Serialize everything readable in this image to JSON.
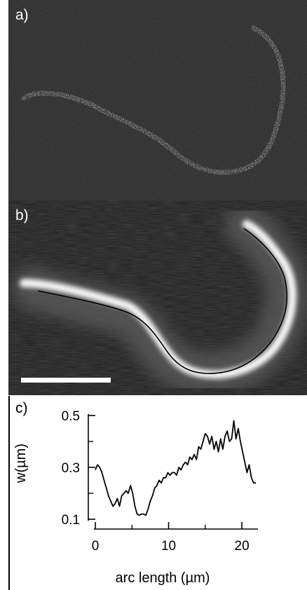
{
  "panels": {
    "a": {
      "label": "a)"
    },
    "b": {
      "label": "b)"
    },
    "c": {
      "label": "c)"
    }
  },
  "colors": {
    "micrograph_bg": "#161616",
    "signal": "#ffffff",
    "contour": "#000000",
    "plot_line": "#000000"
  },
  "chart_data": {
    "type": "line",
    "title": "",
    "xlabel": "arc length (µm)",
    "ylabel": "w(µm)",
    "xlim": [
      0,
      22
    ],
    "ylim": [
      0.1,
      0.5
    ],
    "xticks": [
      0,
      10,
      20
    ],
    "xtick_labels": [
      "0",
      "10",
      "20"
    ],
    "yticks": [
      0.1,
      0.3,
      0.5
    ],
    "ytick_labels": [
      "0.1",
      "0.3",
      "0.5"
    ],
    "y_minor_ticks": [
      0.2,
      0.4
    ],
    "grid": false,
    "series": [
      {
        "x": [
          0,
          0.3,
          0.6,
          0.9,
          1.2,
          1.5,
          1.8,
          2.1,
          2.4,
          2.7,
          3.0,
          3.3,
          3.6,
          3.9,
          4.2,
          4.5,
          4.8,
          5.1,
          5.4,
          5.7,
          6.0,
          6.3,
          6.6,
          6.9,
          7.2,
          7.5,
          7.8,
          8.1,
          8.4,
          8.7,
          9.0,
          9.3,
          9.6,
          9.9,
          10.2,
          10.5,
          10.8,
          11.1,
          11.4,
          11.7,
          12.0,
          12.3,
          12.6,
          12.9,
          13.2,
          13.5,
          13.8,
          14.1,
          14.4,
          14.7,
          15.0,
          15.3,
          15.6,
          15.9,
          16.2,
          16.5,
          16.8,
          17.1,
          17.4,
          17.7,
          18.0,
          18.3,
          18.6,
          18.9,
          19.2,
          19.5,
          19.8,
          20.1,
          20.4,
          20.7,
          21.0,
          21.3,
          21.6,
          21.9
        ],
        "y": [
          0.29,
          0.31,
          0.3,
          0.28,
          0.25,
          0.22,
          0.19,
          0.17,
          0.15,
          0.16,
          0.18,
          0.15,
          0.19,
          0.2,
          0.21,
          0.2,
          0.23,
          0.2,
          0.15,
          0.12,
          0.115,
          0.12,
          0.12,
          0.115,
          0.14,
          0.17,
          0.19,
          0.22,
          0.23,
          0.25,
          0.24,
          0.26,
          0.26,
          0.28,
          0.27,
          0.28,
          0.28,
          0.27,
          0.3,
          0.29,
          0.31,
          0.32,
          0.31,
          0.34,
          0.33,
          0.35,
          0.33,
          0.38,
          0.37,
          0.4,
          0.43,
          0.42,
          0.39,
          0.42,
          0.37,
          0.4,
          0.36,
          0.41,
          0.37,
          0.42,
          0.44,
          0.4,
          0.41,
          0.48,
          0.41,
          0.45,
          0.4,
          0.36,
          0.32,
          0.28,
          0.31,
          0.26,
          0.24,
          0.24
        ]
      }
    ]
  }
}
